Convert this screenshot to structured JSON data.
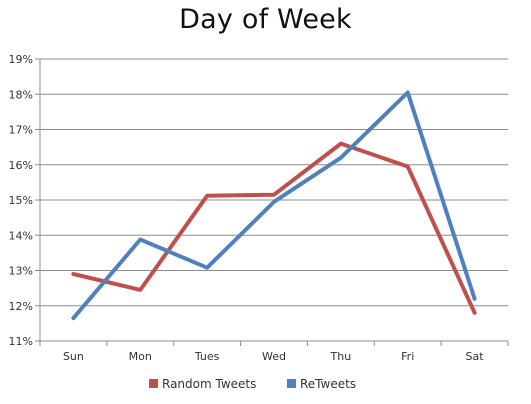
{
  "chart_data": {
    "type": "line",
    "title": "Day of Week",
    "categories": [
      "Sun",
      "Mon",
      "Tues",
      "Wed",
      "Thu",
      "Fri",
      "Sat"
    ],
    "series": [
      {
        "name": "Random Tweets",
        "color": "#c0504d",
        "values": [
          12.9,
          12.45,
          15.12,
          15.15,
          16.6,
          15.95,
          11.8
        ]
      },
      {
        "name": "ReTweets",
        "color": "#4f81bd",
        "values": [
          11.65,
          13.88,
          13.08,
          14.95,
          16.2,
          18.05,
          12.2
        ]
      }
    ],
    "ylim": [
      11,
      19
    ],
    "yticks": [
      11,
      12,
      13,
      14,
      15,
      16,
      17,
      18,
      19
    ],
    "ytick_format": "percent",
    "grid": true,
    "legend_position": "bottom-center"
  }
}
